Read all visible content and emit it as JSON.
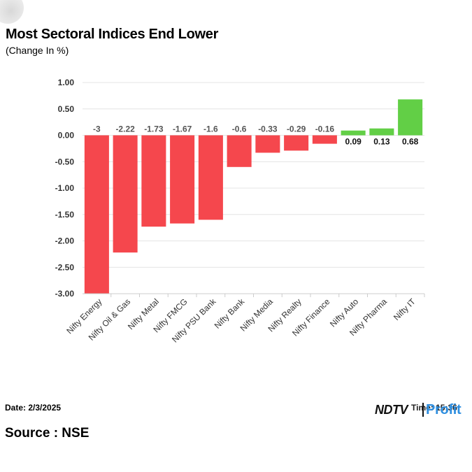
{
  "header": {
    "title": "Most Sectoral Indices End Lower",
    "subtitle": "(Change In %)"
  },
  "footer": {
    "date": "Date: 2/3/2025",
    "source": "Source : NSE",
    "time_overlay": "Time: 15:36",
    "brand_ndtv": "NDTV",
    "brand_profit": "Profit"
  },
  "colors": {
    "negative": "#f5474d",
    "positive": "#62cf46",
    "grid": "#e4e4e4",
    "label": "#555555"
  },
  "chart_data": {
    "type": "bar",
    "title": "Most Sectoral Indices End Lower",
    "subtitle": "(Change In %)",
    "xlabel": "",
    "ylabel": "",
    "ylim": [
      -3.0,
      1.0
    ],
    "yticks": [
      1.0,
      0.5,
      0.0,
      -0.5,
      -1.0,
      -1.5,
      -2.0,
      -2.5,
      -3.0
    ],
    "ytick_labels": [
      "1.00",
      "0.50",
      "0.00",
      "-0.50",
      "-1.00",
      "-1.50",
      "-2.00",
      "-2.50",
      "-3.00"
    ],
    "grid": true,
    "legend": "none",
    "categories": [
      "Nifty Energy",
      "Nifty Oil & Gas",
      "Nifty Metal",
      "Nifty FMCG",
      "Nifty PSU Bank",
      "Nifty Bank",
      "Nifty Media",
      "Nifty Realty",
      "Nifty Finance",
      "Nifty Auto",
      "Nifty Pharma",
      "Nifty IT"
    ],
    "values": [
      -3,
      -2.22,
      -1.73,
      -1.67,
      -1.6,
      -0.6,
      -0.33,
      -0.29,
      -0.16,
      0.09,
      0.13,
      0.68
    ],
    "data_labels": [
      "-3",
      "-2.22",
      "-1.73",
      "-1.67",
      "-1.6",
      "-0.6",
      "-0.33",
      "-0.29",
      "-0.16",
      "0.09",
      "0.13",
      "0.68"
    ]
  }
}
